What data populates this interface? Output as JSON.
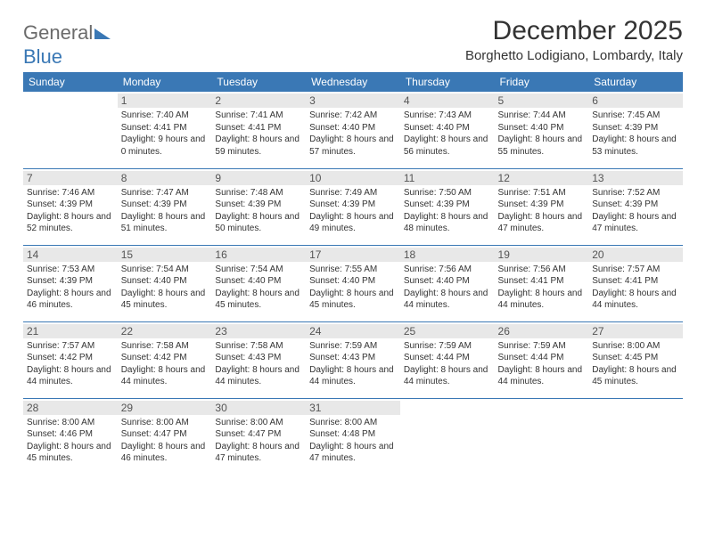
{
  "logo": {
    "text1": "General",
    "text2": "Blue"
  },
  "title": "December 2025",
  "location": "Borghetto Lodigiano, Lombardy, Italy",
  "colors": {
    "header_bg": "#3a78b5",
    "header_text": "#ffffff",
    "daynum_bg": "#e8e8e8",
    "border": "#3a78b5",
    "text": "#333333",
    "logo_gray": "#6b6b6b"
  },
  "weekdays": [
    "Sunday",
    "Monday",
    "Tuesday",
    "Wednesday",
    "Thursday",
    "Friday",
    "Saturday"
  ],
  "weeks": [
    [
      {
        "n": "",
        "sr": "",
        "ss": "",
        "dl": ""
      },
      {
        "n": "1",
        "sr": "Sunrise: 7:40 AM",
        "ss": "Sunset: 4:41 PM",
        "dl": "Daylight: 9 hours and 0 minutes."
      },
      {
        "n": "2",
        "sr": "Sunrise: 7:41 AM",
        "ss": "Sunset: 4:41 PM",
        "dl": "Daylight: 8 hours and 59 minutes."
      },
      {
        "n": "3",
        "sr": "Sunrise: 7:42 AM",
        "ss": "Sunset: 4:40 PM",
        "dl": "Daylight: 8 hours and 57 minutes."
      },
      {
        "n": "4",
        "sr": "Sunrise: 7:43 AM",
        "ss": "Sunset: 4:40 PM",
        "dl": "Daylight: 8 hours and 56 minutes."
      },
      {
        "n": "5",
        "sr": "Sunrise: 7:44 AM",
        "ss": "Sunset: 4:40 PM",
        "dl": "Daylight: 8 hours and 55 minutes."
      },
      {
        "n": "6",
        "sr": "Sunrise: 7:45 AM",
        "ss": "Sunset: 4:39 PM",
        "dl": "Daylight: 8 hours and 53 minutes."
      }
    ],
    [
      {
        "n": "7",
        "sr": "Sunrise: 7:46 AM",
        "ss": "Sunset: 4:39 PM",
        "dl": "Daylight: 8 hours and 52 minutes."
      },
      {
        "n": "8",
        "sr": "Sunrise: 7:47 AM",
        "ss": "Sunset: 4:39 PM",
        "dl": "Daylight: 8 hours and 51 minutes."
      },
      {
        "n": "9",
        "sr": "Sunrise: 7:48 AM",
        "ss": "Sunset: 4:39 PM",
        "dl": "Daylight: 8 hours and 50 minutes."
      },
      {
        "n": "10",
        "sr": "Sunrise: 7:49 AM",
        "ss": "Sunset: 4:39 PM",
        "dl": "Daylight: 8 hours and 49 minutes."
      },
      {
        "n": "11",
        "sr": "Sunrise: 7:50 AM",
        "ss": "Sunset: 4:39 PM",
        "dl": "Daylight: 8 hours and 48 minutes."
      },
      {
        "n": "12",
        "sr": "Sunrise: 7:51 AM",
        "ss": "Sunset: 4:39 PM",
        "dl": "Daylight: 8 hours and 47 minutes."
      },
      {
        "n": "13",
        "sr": "Sunrise: 7:52 AM",
        "ss": "Sunset: 4:39 PM",
        "dl": "Daylight: 8 hours and 47 minutes."
      }
    ],
    [
      {
        "n": "14",
        "sr": "Sunrise: 7:53 AM",
        "ss": "Sunset: 4:39 PM",
        "dl": "Daylight: 8 hours and 46 minutes."
      },
      {
        "n": "15",
        "sr": "Sunrise: 7:54 AM",
        "ss": "Sunset: 4:40 PM",
        "dl": "Daylight: 8 hours and 45 minutes."
      },
      {
        "n": "16",
        "sr": "Sunrise: 7:54 AM",
        "ss": "Sunset: 4:40 PM",
        "dl": "Daylight: 8 hours and 45 minutes."
      },
      {
        "n": "17",
        "sr": "Sunrise: 7:55 AM",
        "ss": "Sunset: 4:40 PM",
        "dl": "Daylight: 8 hours and 45 minutes."
      },
      {
        "n": "18",
        "sr": "Sunrise: 7:56 AM",
        "ss": "Sunset: 4:40 PM",
        "dl": "Daylight: 8 hours and 44 minutes."
      },
      {
        "n": "19",
        "sr": "Sunrise: 7:56 AM",
        "ss": "Sunset: 4:41 PM",
        "dl": "Daylight: 8 hours and 44 minutes."
      },
      {
        "n": "20",
        "sr": "Sunrise: 7:57 AM",
        "ss": "Sunset: 4:41 PM",
        "dl": "Daylight: 8 hours and 44 minutes."
      }
    ],
    [
      {
        "n": "21",
        "sr": "Sunrise: 7:57 AM",
        "ss": "Sunset: 4:42 PM",
        "dl": "Daylight: 8 hours and 44 minutes."
      },
      {
        "n": "22",
        "sr": "Sunrise: 7:58 AM",
        "ss": "Sunset: 4:42 PM",
        "dl": "Daylight: 8 hours and 44 minutes."
      },
      {
        "n": "23",
        "sr": "Sunrise: 7:58 AM",
        "ss": "Sunset: 4:43 PM",
        "dl": "Daylight: 8 hours and 44 minutes."
      },
      {
        "n": "24",
        "sr": "Sunrise: 7:59 AM",
        "ss": "Sunset: 4:43 PM",
        "dl": "Daylight: 8 hours and 44 minutes."
      },
      {
        "n": "25",
        "sr": "Sunrise: 7:59 AM",
        "ss": "Sunset: 4:44 PM",
        "dl": "Daylight: 8 hours and 44 minutes."
      },
      {
        "n": "26",
        "sr": "Sunrise: 7:59 AM",
        "ss": "Sunset: 4:44 PM",
        "dl": "Daylight: 8 hours and 44 minutes."
      },
      {
        "n": "27",
        "sr": "Sunrise: 8:00 AM",
        "ss": "Sunset: 4:45 PM",
        "dl": "Daylight: 8 hours and 45 minutes."
      }
    ],
    [
      {
        "n": "28",
        "sr": "Sunrise: 8:00 AM",
        "ss": "Sunset: 4:46 PM",
        "dl": "Daylight: 8 hours and 45 minutes."
      },
      {
        "n": "29",
        "sr": "Sunrise: 8:00 AM",
        "ss": "Sunset: 4:47 PM",
        "dl": "Daylight: 8 hours and 46 minutes."
      },
      {
        "n": "30",
        "sr": "Sunrise: 8:00 AM",
        "ss": "Sunset: 4:47 PM",
        "dl": "Daylight: 8 hours and 47 minutes."
      },
      {
        "n": "31",
        "sr": "Sunrise: 8:00 AM",
        "ss": "Sunset: 4:48 PM",
        "dl": "Daylight: 8 hours and 47 minutes."
      },
      {
        "n": "",
        "sr": "",
        "ss": "",
        "dl": ""
      },
      {
        "n": "",
        "sr": "",
        "ss": "",
        "dl": ""
      },
      {
        "n": "",
        "sr": "",
        "ss": "",
        "dl": ""
      }
    ]
  ]
}
